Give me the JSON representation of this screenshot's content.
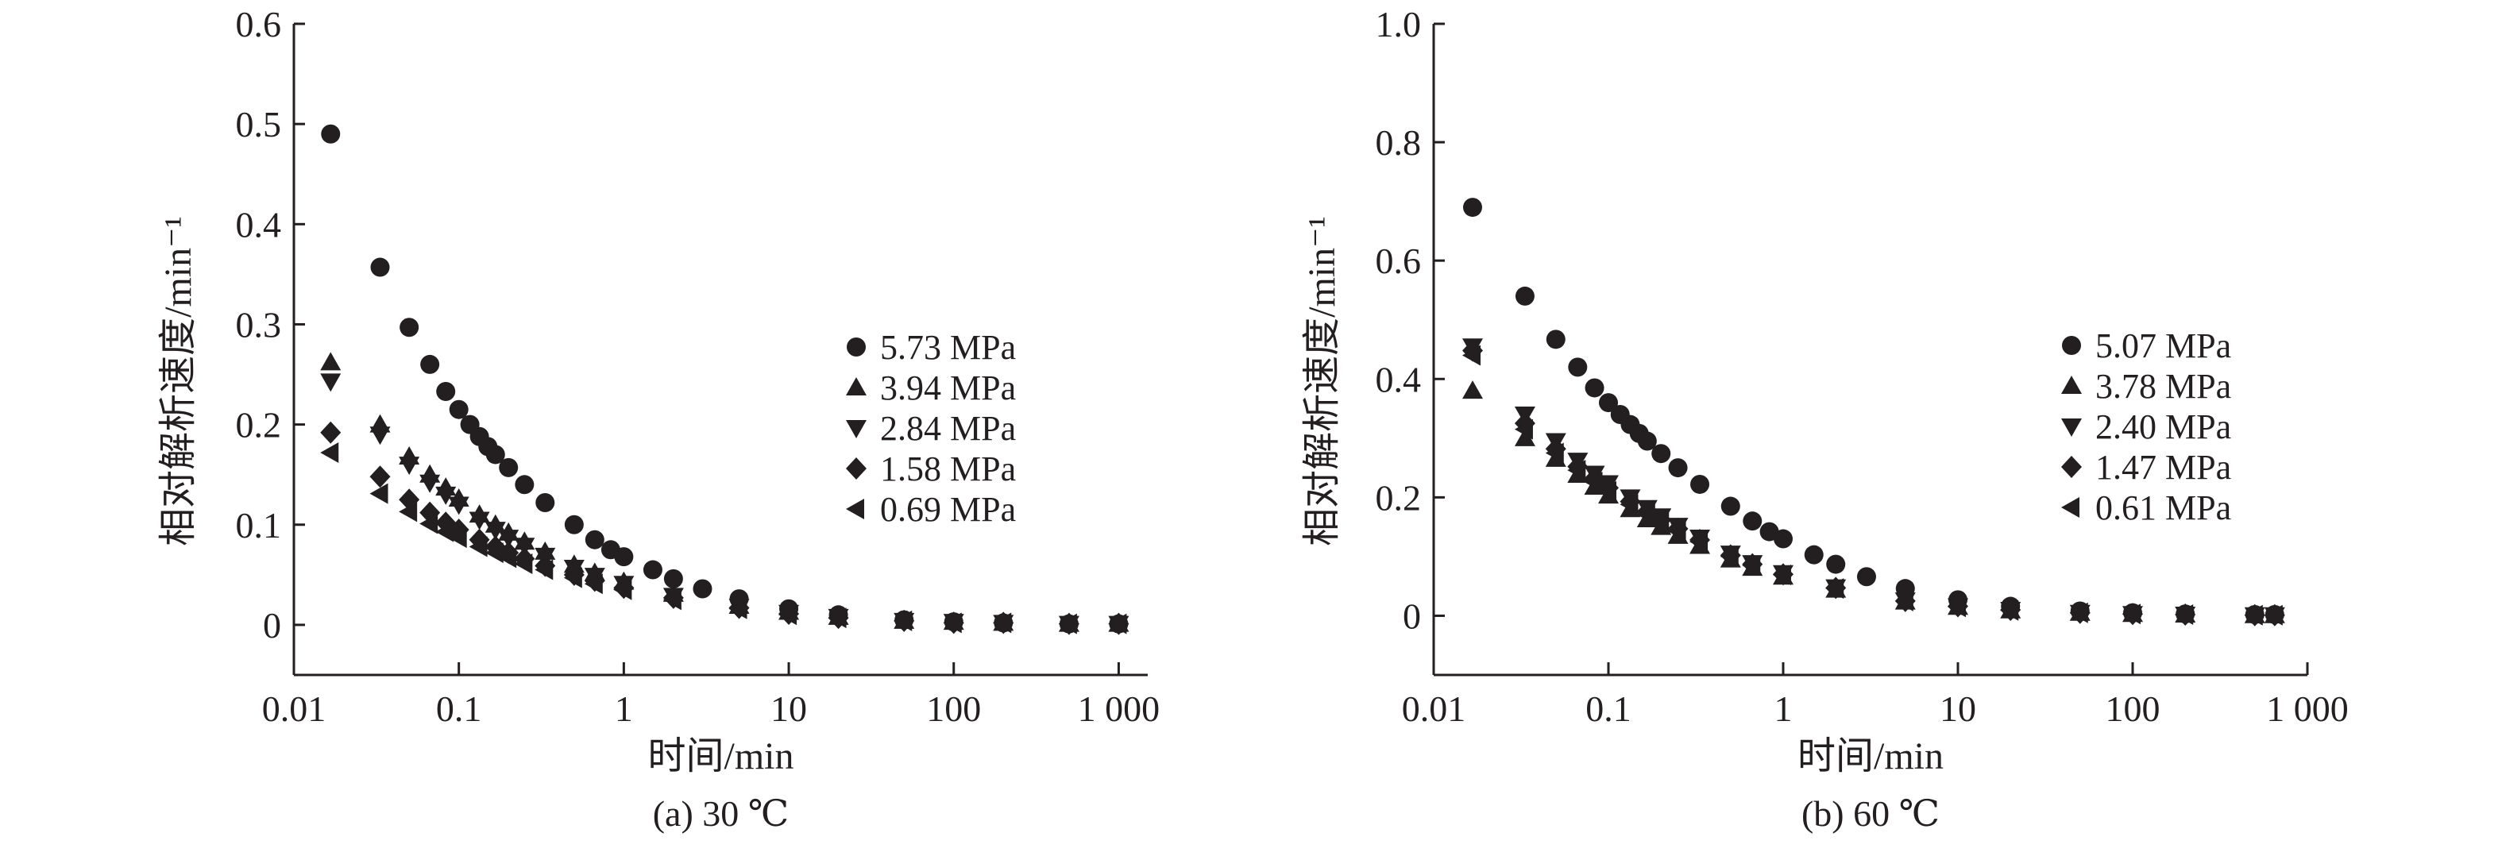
{
  "figure": {
    "panels": [
      {
        "caption": "(a) 30 ℃"
      },
      {
        "caption": "(b) 60 ℃"
      }
    ]
  },
  "chart_data": [
    {
      "type": "scatter",
      "title": "",
      "caption": "(a) 30 ℃",
      "xlabel": "时间/min",
      "ylabel": "相对解析速度/min⁻¹",
      "xscale": "log",
      "xlim": [
        0.01,
        1500
      ],
      "ylim": [
        -0.05,
        0.6
      ],
      "xticks": [
        0.01,
        0.1,
        1,
        10,
        100,
        1000
      ],
      "xtick_labels": [
        "0.01",
        "0.1",
        "1",
        "10",
        "100",
        "1 000"
      ],
      "yticks": [
        0,
        0.1,
        0.2,
        0.3,
        0.4,
        0.5,
        0.6
      ],
      "ytick_labels": [
        "0",
        "0.1",
        "0.2",
        "0.3",
        "0.4",
        "0.5",
        "0.6"
      ],
      "legend_position": "right",
      "series": [
        {
          "name": "5.73 MPa",
          "marker": "circle",
          "x": [
            0.0167,
            0.0333,
            0.05,
            0.0667,
            0.0833,
            0.1,
            0.1167,
            0.1333,
            0.15,
            0.1667,
            0.2,
            0.25,
            0.3333,
            0.5,
            0.6667,
            0.8333,
            1,
            1.5,
            2,
            3,
            5,
            10,
            20,
            50,
            100,
            200,
            500,
            1000
          ],
          "y": [
            0.49,
            0.357,
            0.297,
            0.26,
            0.233,
            0.215,
            0.2,
            0.188,
            0.178,
            0.17,
            0.157,
            0.14,
            0.122,
            0.1,
            0.085,
            0.075,
            0.068,
            0.055,
            0.046,
            0.036,
            0.026,
            0.016,
            0.01,
            0.005,
            0.003,
            0.002,
            0.001,
            0.001
          ]
        },
        {
          "name": "3.94 MPa",
          "marker": "triangle-up",
          "x": [
            0.0167,
            0.0333,
            0.05,
            0.0667,
            0.0833,
            0.1,
            0.1333,
            0.1667,
            0.2,
            0.25,
            0.3333,
            0.5,
            0.6667,
            1,
            2,
            5,
            10,
            20,
            50,
            100,
            200,
            500,
            1000
          ],
          "y": [
            0.262,
            0.2,
            0.168,
            0.15,
            0.137,
            0.126,
            0.11,
            0.1,
            0.092,
            0.083,
            0.073,
            0.06,
            0.052,
            0.043,
            0.031,
            0.019,
            0.013,
            0.008,
            0.004,
            0.003,
            0.002,
            0.001,
            0.001
          ]
        },
        {
          "name": "2.84 MPa",
          "marker": "triangle-down",
          "x": [
            0.0167,
            0.0333,
            0.05,
            0.0667,
            0.0833,
            0.1,
            0.1333,
            0.1667,
            0.2,
            0.25,
            0.3333,
            0.5,
            0.6667,
            1,
            2,
            5,
            10,
            20,
            50,
            100,
            200,
            500,
            1000
          ],
          "y": [
            0.243,
            0.19,
            0.16,
            0.142,
            0.13,
            0.12,
            0.105,
            0.095,
            0.087,
            0.079,
            0.069,
            0.057,
            0.049,
            0.041,
            0.029,
            0.018,
            0.012,
            0.008,
            0.004,
            0.003,
            0.002,
            0.001,
            0.001
          ]
        },
        {
          "name": "1.58 MPa",
          "marker": "diamond",
          "x": [
            0.0167,
            0.0333,
            0.05,
            0.0667,
            0.0833,
            0.1,
            0.1333,
            0.1667,
            0.2,
            0.25,
            0.3333,
            0.5,
            0.6667,
            1,
            2,
            5,
            10,
            20,
            50,
            100,
            200,
            500,
            1000
          ],
          "y": [
            0.192,
            0.148,
            0.125,
            0.112,
            0.102,
            0.095,
            0.085,
            0.078,
            0.072,
            0.066,
            0.059,
            0.05,
            0.044,
            0.037,
            0.027,
            0.017,
            0.011,
            0.007,
            0.004,
            0.002,
            0.002,
            0.001,
            0.001
          ]
        },
        {
          "name": "0.69 MPa",
          "marker": "triangle-left",
          "x": [
            0.0167,
            0.0333,
            0.05,
            0.0667,
            0.0833,
            0.1,
            0.1333,
            0.1667,
            0.2,
            0.25,
            0.3333,
            0.5,
            0.6667,
            1,
            2,
            5,
            10,
            20,
            50,
            100,
            200,
            500,
            1000
          ],
          "y": [
            0.172,
            0.131,
            0.113,
            0.101,
            0.093,
            0.087,
            0.078,
            0.072,
            0.067,
            0.061,
            0.055,
            0.047,
            0.041,
            0.035,
            0.025,
            0.016,
            0.01,
            0.007,
            0.004,
            0.002,
            0.002,
            0.001,
            0.001
          ]
        }
      ]
    },
    {
      "type": "scatter",
      "title": "",
      "caption": "(b) 60 ℃",
      "xlabel": "时间/min",
      "ylabel": "相对解析速度/min⁻¹",
      "xscale": "log",
      "xlim": [
        0.01,
        1000
      ],
      "ylim": [
        -0.1,
        1.0
      ],
      "xticks": [
        0.01,
        0.1,
        1,
        10,
        100,
        1000
      ],
      "xtick_labels": [
        "0.01",
        "0.1",
        "1",
        "10",
        "100",
        "1 000"
      ],
      "yticks": [
        0,
        0.2,
        0.4,
        0.6,
        0.8,
        1.0
      ],
      "ytick_labels": [
        "0",
        "0.2",
        "0.4",
        "0.6",
        "0.8",
        "1.0"
      ],
      "legend_position": "right",
      "series": [
        {
          "name": "5.07 MPa",
          "marker": "circle",
          "x": [
            0.0167,
            0.0333,
            0.05,
            0.0667,
            0.0833,
            0.1,
            0.1167,
            0.1333,
            0.15,
            0.1667,
            0.2,
            0.25,
            0.3333,
            0.5,
            0.6667,
            0.8333,
            1,
            1.5,
            2,
            3,
            5,
            10,
            20,
            50,
            100,
            200,
            500,
            650
          ],
          "y": [
            0.69,
            0.54,
            0.467,
            0.42,
            0.385,
            0.36,
            0.34,
            0.323,
            0.308,
            0.295,
            0.274,
            0.25,
            0.222,
            0.185,
            0.16,
            0.142,
            0.13,
            0.103,
            0.087,
            0.066,
            0.046,
            0.027,
            0.016,
            0.008,
            0.005,
            0.003,
            0.002,
            0.002
          ]
        },
        {
          "name": "3.78 MPa",
          "marker": "triangle-up",
          "x": [
            0.0167,
            0.0333,
            0.05,
            0.0667,
            0.0833,
            0.1,
            0.1333,
            0.1667,
            0.2,
            0.25,
            0.3333,
            0.5,
            0.6667,
            1,
            2,
            5,
            10,
            20,
            50,
            100,
            200,
            500,
            650
          ],
          "y": [
            0.38,
            0.3,
            0.265,
            0.238,
            0.218,
            0.203,
            0.18,
            0.163,
            0.15,
            0.135,
            0.118,
            0.095,
            0.081,
            0.066,
            0.044,
            0.024,
            0.015,
            0.009,
            0.005,
            0.003,
            0.002,
            0.001,
            0.001
          ]
        },
        {
          "name": "2.40 MPa",
          "marker": "triangle-down",
          "x": [
            0.0167,
            0.0333,
            0.05,
            0.0667,
            0.0833,
            0.1,
            0.1333,
            0.1667,
            0.2,
            0.25,
            0.3333,
            0.5,
            0.6667,
            1,
            2,
            5,
            10,
            20,
            50,
            100,
            200,
            500,
            650
          ],
          "y": [
            0.455,
            0.34,
            0.295,
            0.262,
            0.24,
            0.224,
            0.2,
            0.182,
            0.168,
            0.152,
            0.132,
            0.105,
            0.089,
            0.072,
            0.048,
            0.026,
            0.016,
            0.01,
            0.005,
            0.003,
            0.002,
            0.001,
            0.001
          ]
        },
        {
          "name": "1.47 MPa",
          "marker": "diamond",
          "x": [
            0.0167,
            0.0333,
            0.05,
            0.0667,
            0.0833,
            0.1,
            0.1333,
            0.1667,
            0.2,
            0.25,
            0.3333,
            0.5,
            0.6667,
            1,
            2,
            5,
            10,
            20,
            50,
            100,
            200,
            500,
            650
          ],
          "y": [
            0.448,
            0.325,
            0.282,
            0.252,
            0.232,
            0.216,
            0.193,
            0.176,
            0.162,
            0.147,
            0.128,
            0.102,
            0.087,
            0.07,
            0.047,
            0.025,
            0.016,
            0.01,
            0.005,
            0.003,
            0.002,
            0.001,
            0.001
          ]
        },
        {
          "name": "0.61 MPa",
          "marker": "triangle-left",
          "x": [
            0.0167,
            0.0333,
            0.05,
            0.0667,
            0.0833,
            0.1,
            0.1333,
            0.1667,
            0.2,
            0.25,
            0.3333,
            0.5,
            0.6667,
            1,
            2,
            5,
            10,
            20,
            50,
            100,
            200,
            500,
            650
          ],
          "y": [
            0.44,
            0.315,
            0.275,
            0.246,
            0.226,
            0.21,
            0.188,
            0.171,
            0.158,
            0.143,
            0.125,
            0.1,
            0.085,
            0.069,
            0.046,
            0.025,
            0.015,
            0.009,
            0.005,
            0.003,
            0.002,
            0.001,
            0.001
          ]
        }
      ]
    }
  ]
}
